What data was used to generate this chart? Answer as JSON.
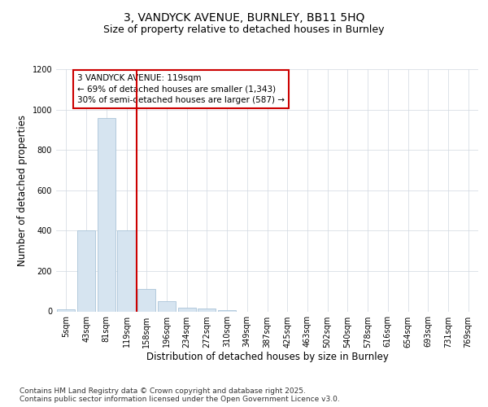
{
  "title_line1": "3, VANDYCK AVENUE, BURNLEY, BB11 5HQ",
  "title_line2": "Size of property relative to detached houses in Burnley",
  "xlabel": "Distribution of detached houses by size in Burnley",
  "ylabel": "Number of detached properties",
  "categories": [
    "5sqm",
    "43sqm",
    "81sqm",
    "119sqm",
    "158sqm",
    "196sqm",
    "234sqm",
    "272sqm",
    "310sqm",
    "349sqm",
    "387sqm",
    "425sqm",
    "463sqm",
    "502sqm",
    "540sqm",
    "578sqm",
    "616sqm",
    "654sqm",
    "693sqm",
    "731sqm",
    "769sqm"
  ],
  "values": [
    10,
    400,
    960,
    400,
    110,
    50,
    20,
    15,
    5,
    0,
    0,
    0,
    0,
    0,
    0,
    0,
    0,
    0,
    0,
    0,
    0
  ],
  "bar_color": "#d6e4f0",
  "bar_edge_color": "#aac4d8",
  "grid_color": "#d0d8e0",
  "vline_x": 3.5,
  "vline_color": "#cc0000",
  "annotation_text": "3 VANDYCK AVENUE: 119sqm\n← 69% of detached houses are smaller (1,343)\n30% of semi-detached houses are larger (587) →",
  "annotation_box_facecolor": "#ffffff",
  "annotation_box_edgecolor": "#cc0000",
  "ylim": [
    0,
    1200
  ],
  "yticks": [
    0,
    200,
    400,
    600,
    800,
    1000,
    1200
  ],
  "footnote": "Contains HM Land Registry data © Crown copyright and database right 2025.\nContains public sector information licensed under the Open Government Licence v3.0.",
  "bg_color": "#ffffff",
  "title_fontsize": 10,
  "subtitle_fontsize": 9,
  "tick_fontsize": 7,
  "label_fontsize": 8.5,
  "ann_fontsize": 7.5,
  "footnote_fontsize": 6.5
}
